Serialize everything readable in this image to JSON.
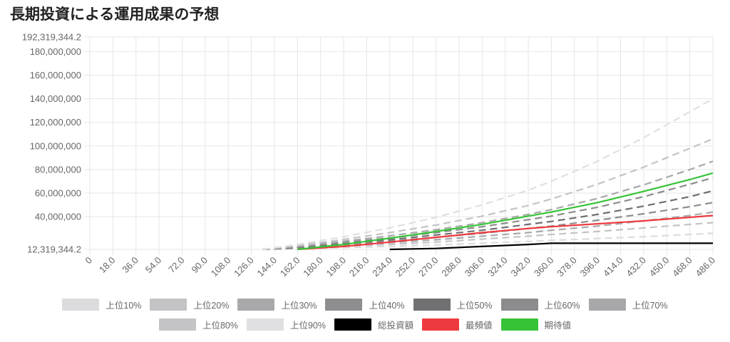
{
  "page": {
    "title": "長期投資による運用成果の予想"
  },
  "chart_data": {
    "type": "line",
    "title": "長期投資による運用成果の予想",
    "xlabel": "",
    "ylabel": "",
    "ylim": [
      12319344.2,
      192319344.2
    ],
    "xlim": [
      0,
      486
    ],
    "grid": true,
    "legend_position": "bottom",
    "x_ticks": [
      "0",
      "18.0",
      "36.0",
      "54.0",
      "72.0",
      "90.0",
      "108.0",
      "126.0",
      "144.0",
      "162.0",
      "180.0",
      "198.0",
      "216.0",
      "234.0",
      "252.0",
      "270.0",
      "288.0",
      "306.0",
      "324.0",
      "342.0",
      "360.0",
      "378.0",
      "396.0",
      "414.0",
      "432.0",
      "450.0",
      "468.0",
      "486.0"
    ],
    "y_ticks": [
      {
        "value": 192319344.2,
        "label": "192,319,344.2"
      },
      {
        "value": 180000000,
        "label": "180,000,000"
      },
      {
        "value": 160000000,
        "label": "160,000,000"
      },
      {
        "value": 140000000,
        "label": "140,000,000"
      },
      {
        "value": 120000000,
        "label": "120,000,000"
      },
      {
        "value": 100000000,
        "label": "100,000,000"
      },
      {
        "value": 80000000,
        "label": "80,000,000"
      },
      {
        "value": 60000000,
        "label": "60,000,000"
      },
      {
        "value": 40000000,
        "label": "40,000,000"
      },
      {
        "value": 12319344.2,
        "label": "12,319,344.2"
      }
    ],
    "x": [
      135,
      162,
      198,
      234,
      270,
      306,
      342,
      360,
      396,
      432,
      468,
      486
    ],
    "series": [
      {
        "name": "上位10%",
        "color": "#dcdcde",
        "dashed": true,
        "width": 2.2,
        "values": [
          12319344.2,
          12800000,
          13800000,
          14800000,
          16000000,
          17500000,
          19000000,
          20000000,
          21500000,
          23000000,
          25000000,
          26000000
        ]
      },
      {
        "name": "上位20%",
        "color": "#c4c4c6",
        "dashed": true,
        "width": 2.2,
        "values": [
          12319344.2,
          13200000,
          14800000,
          16500000,
          18500000,
          21000000,
          23500000,
          25000000,
          27500000,
          30500000,
          33500000,
          35000000
        ]
      },
      {
        "name": "上位30%",
        "color": "#a9a9ab",
        "dashed": true,
        "width": 2.2,
        "values": [
          12319344.2,
          13500000,
          15500000,
          18000000,
          20500000,
          23500000,
          26500000,
          28500000,
          32000000,
          36500000,
          41000000,
          44000000
        ]
      },
      {
        "name": "上位40%",
        "color": "#8e8e90",
        "dashed": true,
        "width": 2.2,
        "values": [
          12319344.2,
          13800000,
          16300000,
          19200000,
          22500000,
          26000000,
          30000000,
          32000000,
          37000000,
          42500000,
          48500000,
          52000000
        ]
      },
      {
        "name": "上位50%",
        "color": "#707072",
        "dashed": true,
        "width": 2.2,
        "values": [
          12319344.2,
          14100000,
          17200000,
          20500000,
          24500000,
          28500000,
          33500000,
          36000000,
          42000000,
          49000000,
          57000000,
          62000000
        ]
      },
      {
        "name": "上位60%",
        "color": "#8c8c8e",
        "dashed": true,
        "width": 2.2,
        "values": [
          12319344.2,
          14500000,
          18200000,
          22000000,
          26500000,
          31500000,
          37500000,
          40500000,
          48000000,
          57000000,
          67500000,
          73000000
        ]
      },
      {
        "name": "上位70%",
        "color": "#a8a8aa",
        "dashed": true,
        "width": 2.2,
        "values": [
          12319344.2,
          14900000,
          19200000,
          23800000,
          29000000,
          35000000,
          42000000,
          46000000,
          55500000,
          67000000,
          80000000,
          87000000
        ]
      },
      {
        "name": "上位80%",
        "color": "#c4c4c6",
        "dashed": true,
        "width": 2.2,
        "values": [
          12319344.2,
          15500000,
          20800000,
          26500000,
          33000000,
          40500000,
          49500000,
          55000000,
          67500000,
          82000000,
          98000000,
          106000000
        ]
      },
      {
        "name": "上位90%",
        "color": "#e0e0e2",
        "dashed": true,
        "width": 2.2,
        "values": [
          12319344.2,
          16500000,
          23000000,
          30500000,
          39500000,
          50000000,
          62500000,
          70000000,
          87000000,
          107000000,
          129000000,
          140000000
        ]
      },
      {
        "name": "総投資額",
        "color": "#000000",
        "dashed": false,
        "width": 2.2,
        "values": [
          null,
          null,
          null,
          12319344.2,
          13100000,
          14800000,
          16500000,
          17500000,
          17500000,
          17500000,
          17500000,
          17500000
        ]
      },
      {
        "name": "最頻値",
        "color": "#ee3a3e",
        "dashed": false,
        "width": 2.2,
        "values": [
          null,
          12319344.2,
          14800000,
          18500000,
          22500000,
          26500000,
          30000000,
          31500000,
          34000000,
          36500000,
          39500000,
          41000000
        ]
      },
      {
        "name": "期待値",
        "color": "#36c336",
        "dashed": false,
        "width": 2.2,
        "values": [
          null,
          12319344.2,
          16500000,
          21800000,
          27500000,
          33500000,
          40500000,
          44000000,
          52000000,
          61500000,
          71500000,
          77000000
        ]
      }
    ]
  },
  "legend": {
    "row1": [
      {
        "label": "上位10%",
        "color": "#dcdcde"
      },
      {
        "label": "上位20%",
        "color": "#c4c4c6"
      },
      {
        "label": "上位30%",
        "color": "#a9a9ab"
      },
      {
        "label": "上位40%",
        "color": "#8e8e90"
      },
      {
        "label": "上位50%",
        "color": "#707072"
      },
      {
        "label": "上位60%",
        "color": "#8c8c8e"
      },
      {
        "label": "上位70%",
        "color": "#a8a8aa"
      }
    ],
    "row2": [
      {
        "label": "上位80%",
        "color": "#c4c4c6"
      },
      {
        "label": "上位90%",
        "color": "#e0e0e2"
      },
      {
        "label": "総投資額",
        "color": "#000000"
      },
      {
        "label": "最頻値",
        "color": "#ee3a3e"
      },
      {
        "label": "期待値",
        "color": "#36c336"
      }
    ]
  }
}
